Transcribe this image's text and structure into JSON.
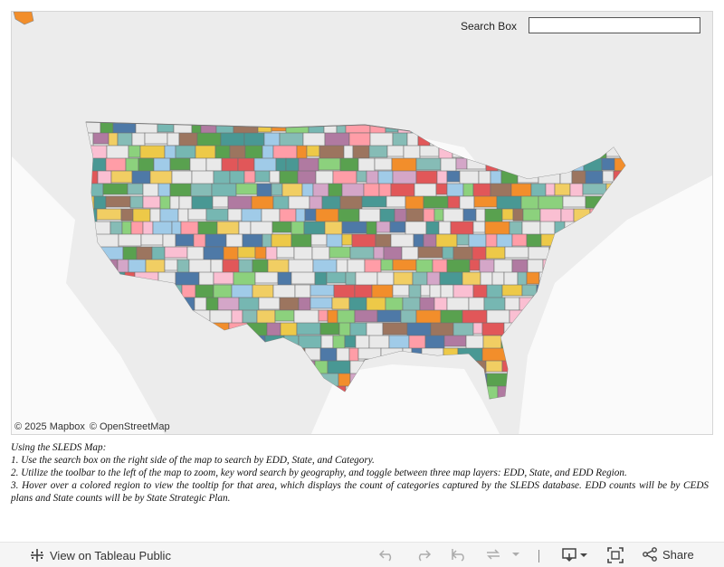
{
  "search": {
    "label": "Search Box",
    "value": ""
  },
  "attribution": {
    "mapbox": "© 2025 Mapbox",
    "osm": "© OpenStreetMap"
  },
  "instructions": [
    "Using the SLEDS Map:",
    "1. Use the search box on the right side of the map to search by EDD, State, and Category.",
    "2. Utilize the toolbar to the left of the map to zoom, key word search by geography, and toggle between three map layers: EDD, State, and EDD Region.",
    "3. Hover over a colored region to view the tooltip for that area, which displays the count of categories captured by the SLEDS database. EDD counts will be by CEDS plans and State counts will be by State Strategic Plan."
  ],
  "footer": {
    "view_link": "View on Tableau Public",
    "share_label": "Share",
    "icons": [
      "tableau-logo-icon",
      "undo-icon",
      "redo-icon",
      "revert-icon",
      "refresh-icon",
      "pause-icon",
      "download-icon",
      "fullscreen-icon",
      "share-icon"
    ]
  },
  "colors": {
    "palette": [
      "#e15759",
      "#59a14f",
      "#76b7b2",
      "#f28e2b",
      "#4e79a7",
      "#edc948",
      "#b07aa1",
      "#ff9da7",
      "#9c755f",
      "#8cd17d",
      "#86bcb6",
      "#f1ce63",
      "#a0cbe8",
      "#d4a6c8",
      "#499894",
      "#fabfd2"
    ],
    "land": "#f3f3f3",
    "neutral_region": "#e9e9e9"
  }
}
